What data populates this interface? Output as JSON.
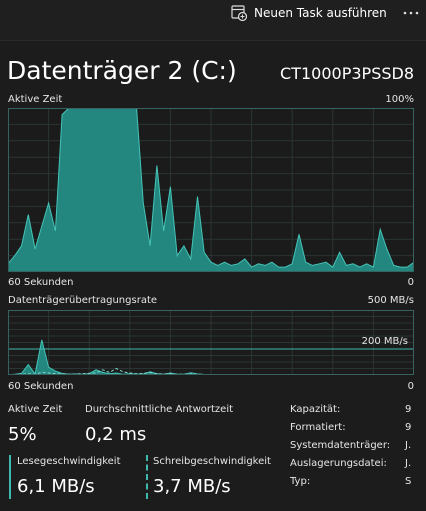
{
  "toolbar": {
    "new_task": "Neuen Task ausführen"
  },
  "header": {
    "title": "Datenträger 2 (C:)",
    "model": "CT1000P3PSSD8"
  },
  "active_time_chart": {
    "label": "Aktive Zeit",
    "max_label": "100%",
    "time_label": "60 Sekunden",
    "min_label": "0",
    "ylim": [
      0,
      100
    ],
    "values": [
      5,
      10,
      16,
      35,
      14,
      28,
      42,
      25,
      96,
      100,
      100,
      100,
      100,
      100,
      100,
      100,
      100,
      100,
      100,
      100,
      42,
      16,
      65,
      25,
      52,
      10,
      16,
      8,
      46,
      12,
      6,
      4,
      6,
      4,
      5,
      8,
      3,
      5,
      4,
      6,
      3,
      3,
      5,
      23,
      6,
      4,
      5,
      6,
      3,
      12,
      4,
      5,
      3,
      5,
      3,
      26,
      14,
      4,
      3,
      3,
      6
    ]
  },
  "transfer_chart": {
    "label": "Datenträgerübertragungsrate",
    "max_label": "500 MB/s",
    "time_label": "60 Sekunden",
    "min_label": "0",
    "ylim": [
      0,
      500
    ],
    "reference": {
      "value": 200,
      "label": "200 MB/s"
    },
    "read_values": [
      2,
      6,
      12,
      80,
      8,
      270,
      60,
      30,
      12,
      6,
      8,
      5,
      10,
      40,
      20,
      10,
      15,
      6,
      10,
      5,
      8,
      25,
      10,
      5,
      15,
      5,
      5,
      18,
      8,
      4,
      3,
      3,
      4,
      3,
      3,
      3,
      4,
      3,
      3,
      3,
      3,
      3,
      3,
      3,
      3,
      3,
      3,
      3,
      3,
      3,
      3,
      3,
      3,
      3,
      3,
      3,
      3,
      3,
      3,
      3,
      3
    ],
    "write_values": [
      3,
      4,
      6,
      10,
      5,
      20,
      15,
      10,
      8,
      6,
      8,
      10,
      12,
      15,
      40,
      20,
      50,
      25,
      15,
      10,
      12,
      20,
      10,
      8,
      10,
      6,
      5,
      8,
      6,
      4,
      4,
      4,
      4,
      4,
      4,
      4,
      4,
      4,
      4,
      4,
      4,
      4,
      4,
      4,
      4,
      4,
      4,
      4,
      4,
      4,
      4,
      4,
      4,
      4,
      4,
      4,
      4,
      4,
      4,
      4,
      4
    ]
  },
  "stats": {
    "active_time": {
      "label": "Aktive Zeit",
      "value": "5%"
    },
    "response_time": {
      "label": "Durchschnittliche Antwortzeit",
      "value": "0,2 ms"
    },
    "read_speed": {
      "label": "Lesegeschwindigkeit",
      "value": "6,1 MB/s"
    },
    "write_speed": {
      "label": "Schreibgeschwindigkeit",
      "value": "3,7 MB/s"
    }
  },
  "properties": [
    {
      "label": "Kapazität:",
      "value": "9"
    },
    {
      "label": "Formatiert:",
      "value": "9"
    },
    {
      "label": "Systemdatenträger:",
      "value": "J."
    },
    {
      "label": "Auslagerungsdatei:",
      "value": "J."
    },
    {
      "label": "Typ:",
      "value": "S"
    }
  ]
}
